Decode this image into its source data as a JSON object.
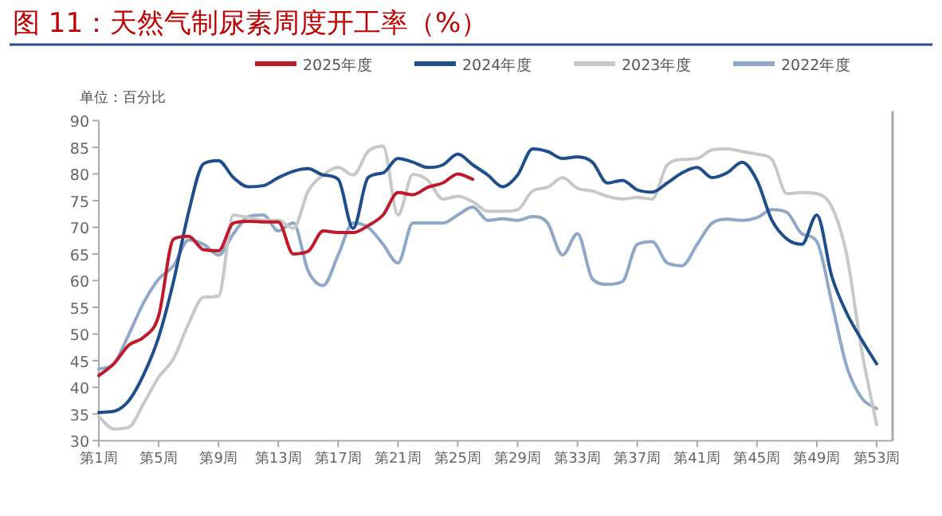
{
  "chart_data": {
    "type": "line",
    "title": "图 11：天然气制尿素周度开工率（%）",
    "annotations": [
      "单位：百分比"
    ],
    "categories": [
      "第1周",
      null,
      null,
      null,
      "第5周",
      null,
      null,
      null,
      "第9周",
      null,
      null,
      null,
      "第13周",
      null,
      null,
      null,
      "第17周",
      null,
      null,
      null,
      "第21周",
      null,
      null,
      null,
      "第25周",
      null,
      null,
      null,
      "第29周",
      null,
      null,
      null,
      "第33周",
      null,
      null,
      null,
      "第37周",
      null,
      null,
      null,
      "第41周",
      null,
      null,
      null,
      "第45周",
      null,
      null,
      null,
      "第49周",
      null,
      null,
      null,
      "第53周"
    ],
    "series": [
      {
        "name": "2025年度",
        "color": "#c0192a",
        "values": [
          42.2,
          44.4,
          47.9,
          49.4,
          53.4,
          67.8,
          68.3,
          65.8,
          65.6,
          70.8,
          71.1,
          71,
          71,
          65,
          65.5,
          69.3,
          69,
          69,
          70.3,
          72.3,
          76.5,
          76.1,
          77.5,
          78.3,
          80,
          79,
          null,
          null,
          null,
          null,
          null,
          null,
          null,
          null,
          null,
          null,
          null,
          null,
          null,
          null,
          null,
          null,
          null,
          null,
          null,
          null,
          null,
          null,
          null,
          null,
          null,
          null,
          null
        ]
      },
      {
        "name": "2024年度",
        "color": "#1f4e8c",
        "values": [
          35.3,
          35.5,
          37.5,
          42.4,
          49.4,
          59.9,
          72.8,
          81.9,
          82.5,
          79.3,
          77.6,
          77.8,
          79.3,
          80.5,
          81,
          79.8,
          79,
          69.8,
          79.3,
          80.2,
          82.9,
          82.2,
          81.2,
          81.7,
          83.7,
          81.7,
          79.8,
          77.6,
          79.8,
          84.7,
          84.2,
          82.9,
          83.2,
          82.2,
          78.3,
          78.8,
          77,
          76.6,
          78.3,
          80.2,
          81.2,
          79.3,
          80.2,
          82.2,
          78.8,
          71.3,
          67.8,
          66.8,
          72.3,
          60.8,
          53.9,
          48.9,
          44.4
        ]
      },
      {
        "name": "2023年度",
        "color": "#c8c8c8",
        "values": [
          34.5,
          32.2,
          32.5,
          37,
          41.9,
          45.4,
          51.9,
          56.9,
          57.1,
          72.3,
          71.8,
          71.3,
          71.3,
          69.8,
          76.8,
          79.8,
          81.2,
          79.8,
          84.2,
          85.2,
          72.3,
          79.9,
          78.8,
          75.3,
          75.8,
          74.8,
          73,
          73,
          73.3,
          76.8,
          77.5,
          79.3,
          77.3,
          76.8,
          75.8,
          75.3,
          75.6,
          75.3,
          81.7,
          82.7,
          82.9,
          84.5,
          84.7,
          84.2,
          83.7,
          82.7,
          76.3,
          76.5,
          76.3,
          73.8,
          64.8,
          46.9,
          33
        ]
      },
      {
        "name": "2022年度",
        "color": "#8fa8c8",
        "values": [
          43.4,
          44.4,
          49.9,
          55.9,
          60.3,
          62.8,
          67.6,
          66.8,
          64.8,
          68.8,
          72,
          72.3,
          69.3,
          70.8,
          61.8,
          59.1,
          64.8,
          70.8,
          70,
          66.8,
          63.3,
          70.8,
          70.8,
          70.8,
          72.3,
          73.8,
          71.3,
          71.6,
          71.3,
          72,
          70.8,
          64.8,
          68.8,
          60.3,
          59.3,
          59.8,
          66.8,
          67.3,
          63.3,
          62.8,
          66.8,
          70.8,
          71.5,
          71.3,
          71.8,
          73.3,
          72.8,
          68.8,
          67.3,
          55.9,
          43.9,
          38,
          36
        ]
      }
    ],
    "ylim": [
      30,
      90
    ],
    "yticks": [
      30,
      35,
      40,
      45,
      50,
      55,
      60,
      65,
      70,
      75,
      80,
      85,
      90
    ],
    "legend": "top",
    "grid": false
  }
}
